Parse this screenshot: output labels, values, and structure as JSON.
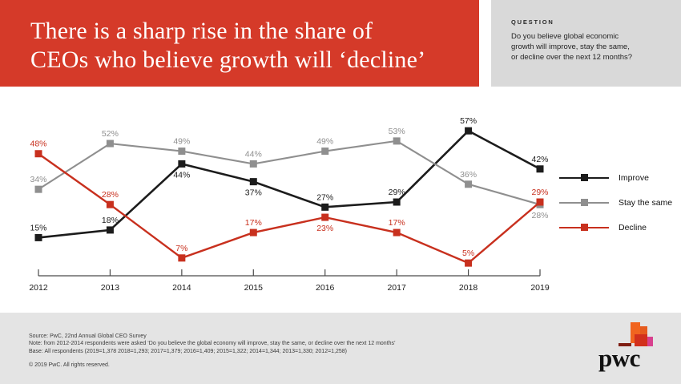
{
  "header": {
    "banner_color": "#d53a29",
    "title_lines": [
      "There is a sharp rise in the share of",
      "CEOs who believe growth will ‘decline’"
    ]
  },
  "question_panel": {
    "label": "QUESTION",
    "lines": [
      "Do you believe global economic",
      "growth will improve, stay the same,",
      "or decline over the next 12 months?"
    ]
  },
  "chart_data": {
    "type": "line",
    "marker": "square",
    "grid": false,
    "legend_position": "right",
    "value_suffix": "%",
    "x": [
      2012,
      2013,
      2014,
      2015,
      2016,
      2017,
      2018,
      2019
    ],
    "ylim": [
      0,
      62
    ],
    "series": [
      {
        "name": "Improve",
        "color": "#1c1c1c",
        "values": [
          15,
          18,
          44,
          37,
          27,
          29,
          57,
          42
        ],
        "label_side": [
          "above",
          "above",
          "below",
          "below",
          "above",
          "above",
          "above",
          "above"
        ]
      },
      {
        "name": "Stay the same",
        "color": "#8f8f8f",
        "values": [
          34,
          52,
          49,
          44,
          49,
          53,
          36,
          28
        ],
        "label_side": [
          "above",
          "above",
          "above",
          "above",
          "above",
          "above",
          "above",
          "below"
        ]
      },
      {
        "name": "Decline",
        "color": "#c8301e",
        "values": [
          48,
          28,
          7,
          17,
          23,
          17,
          5,
          29
        ],
        "label_side": [
          "above",
          "above",
          "above",
          "above",
          "below",
          "above",
          "above",
          "above"
        ]
      }
    ]
  },
  "footer": {
    "source": "Source: PwC, 22nd Annual Global CEO Survey",
    "note": "Note: from 2012-2014 respondents were asked ‘Do you believe the global economy will improve, stay the same, or decline over the next 12 months’",
    "base": "Base: All respondents (2019=1,378 2018=1,293; 2017=1,379; 2016=1,409; 2015=1,322; 2014=1,344; 2013=1,330; 2012=1,258)",
    "copyright": "© 2019 PwC. All rights reserved.",
    "logo_text": "pwc",
    "logo_colors": [
      "#f1641f",
      "#e65b1e",
      "#d2301c",
      "#d8418f",
      "#7e1d12"
    ]
  }
}
